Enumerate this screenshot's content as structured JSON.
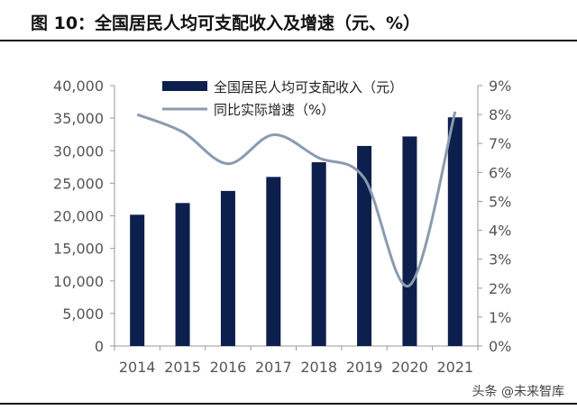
{
  "title": "图 10：全国居民人均可支配收入及增速（元、%）",
  "watermark": "头条 @未来智库",
  "colors": {
    "bar": "#0d1f4d",
    "line": "#8a9bb0",
    "axis": "#999999",
    "text": "#555555"
  },
  "chart_data": {
    "type": "bar",
    "categories": [
      "2014",
      "2015",
      "2016",
      "2017",
      "2018",
      "2019",
      "2020",
      "2021"
    ],
    "series": [
      {
        "name": "全国居民人均可支配收入（元）",
        "type": "bar",
        "axis": "left",
        "values": [
          20167,
          21966,
          23821,
          25974,
          28228,
          30733,
          32189,
          35128
        ]
      },
      {
        "name": "同比实际增速（%）",
        "type": "line",
        "axis": "right",
        "values": [
          8.0,
          7.4,
          6.3,
          7.3,
          6.5,
          5.8,
          2.1,
          8.1
        ]
      }
    ],
    "left_axis": {
      "ylim": [
        0,
        40000
      ],
      "ticks": [
        "0",
        "5,000",
        "10,000",
        "15,000",
        "20,000",
        "25,000",
        "30,000",
        "35,000",
        "40,000"
      ]
    },
    "right_axis": {
      "ylim": [
        0,
        9
      ],
      "ticks": [
        "0%",
        "1%",
        "2%",
        "3%",
        "4%",
        "5%",
        "6%",
        "7%",
        "8%",
        "9%"
      ]
    },
    "legend_position": "top-center",
    "grid": false
  }
}
